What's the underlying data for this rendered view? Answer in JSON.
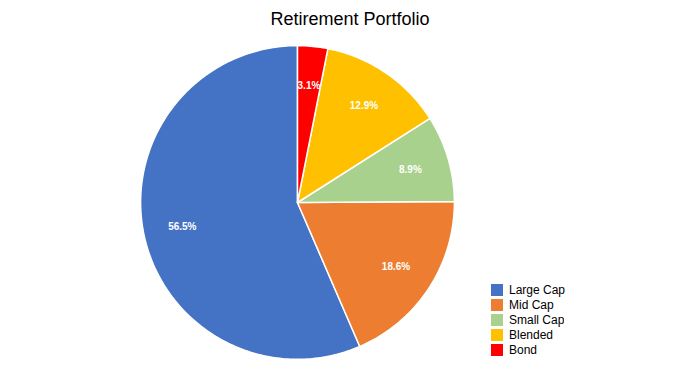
{
  "chart_data": {
    "type": "pie",
    "title": "Retirement Portfolio",
    "categories": [
      "Large Cap",
      "Mid Cap",
      "Small Cap",
      "Blended",
      "Bond"
    ],
    "values": [
      56.5,
      18.6,
      8.9,
      12.9,
      3.1
    ],
    "value_labels": [
      "56.5%",
      "18.6%",
      "8.9%",
      "12.9%",
      "3.1%"
    ],
    "colors": [
      "#4472C4",
      "#ED7D31",
      "#A9D18E",
      "#FFC000",
      "#FF0000"
    ],
    "data_labels": true,
    "legend": "lower right"
  }
}
